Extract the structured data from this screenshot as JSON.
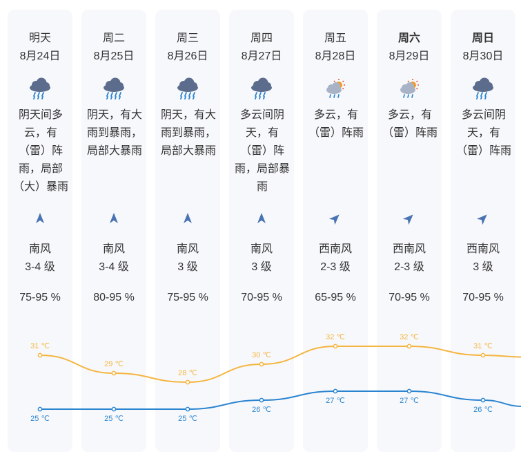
{
  "forecast": {
    "days": [
      {
        "day": "明天",
        "date": "8月24日",
        "icon": "cloud-rain-icon",
        "heavy": false,
        "desc": [
          "阴天间多",
          "云，有",
          "（雷）阵",
          "雨，局部",
          "（大）暴雨"
        ],
        "wind_dir": "南风",
        "wind_level": "3-4 级",
        "humidity": "75-95 %",
        "high": "31 ℃",
        "low": "25 ℃",
        "bold": false,
        "arrow": "north"
      },
      {
        "day": "周二",
        "date": "8月25日",
        "icon": "cloud-heavy-rain-icon",
        "heavy": true,
        "desc": [
          "阴天，有大",
          "雨到暴雨，",
          "局部大暴雨"
        ],
        "wind_dir": "南风",
        "wind_level": "3-4 级",
        "humidity": "80-95 %",
        "high": "29 ℃",
        "low": "25 ℃",
        "bold": false,
        "arrow": "north"
      },
      {
        "day": "周三",
        "date": "8月26日",
        "icon": "cloud-heavy-rain-icon",
        "heavy": true,
        "desc": [
          "阴天，有大",
          "雨到暴雨，",
          "局部大暴雨"
        ],
        "wind_dir": "南风",
        "wind_level": "3 级",
        "humidity": "75-95 %",
        "high": "28 ℃",
        "low": "25 ℃",
        "bold": false,
        "arrow": "north"
      },
      {
        "day": "周四",
        "date": "8月27日",
        "icon": "cloud-rain-icon",
        "heavy": false,
        "desc": [
          "多云间阴",
          "天，有",
          "（雷）阵",
          "雨，局部暴",
          "雨"
        ],
        "wind_dir": "南风",
        "wind_level": "3 级",
        "humidity": "70-95 %",
        "high": "30 ℃",
        "low": "26 ℃",
        "bold": false,
        "arrow": "north"
      },
      {
        "day": "周五",
        "date": "8月28日",
        "icon": "sun-cloud-rain-icon",
        "heavy": false,
        "desc": [
          "多云，有",
          "（雷）阵雨"
        ],
        "wind_dir": "西南风",
        "wind_level": "2-3 级",
        "humidity": "65-95 %",
        "high": "32 ℃",
        "low": "27 ℃",
        "bold": false,
        "arrow": "northeast"
      },
      {
        "day": "周六",
        "date": "8月29日",
        "icon": "sun-cloud-rain-icon",
        "heavy": false,
        "desc": [
          "多云，有",
          "（雷）阵雨"
        ],
        "wind_dir": "西南风",
        "wind_level": "2-3 级",
        "humidity": "70-95 %",
        "high": "32 ℃",
        "low": "27 ℃",
        "bold": true,
        "arrow": "northeast"
      },
      {
        "day": "周日",
        "date": "8月30日",
        "icon": "cloud-rain-icon",
        "heavy": false,
        "desc": [
          "多云间阴",
          "天，有",
          "（雷）阵雨"
        ],
        "wind_dir": "西南风",
        "wind_level": "3 级",
        "humidity": "70-95 %",
        "high": "31 ℃",
        "low": "26 ℃",
        "bold": true,
        "arrow": "northeast"
      }
    ]
  },
  "colors": {
    "high_line": "#f5b53f",
    "low_line": "#2b84d0",
    "card_bg": "#f7f8fb",
    "icon_cloud": "#5b6c8c"
  },
  "chart_data": {
    "type": "line",
    "categories": [
      "8月24日",
      "8月25日",
      "8月26日",
      "8月27日",
      "8月28日",
      "8月29日",
      "8月30日"
    ],
    "series": [
      {
        "values": [
          31,
          29,
          28,
          30,
          32,
          32,
          31
        ]
      },
      {
        "values": [
          25,
          25,
          25,
          26,
          27,
          27,
          26
        ]
      }
    ],
    "unit": "℃"
  }
}
